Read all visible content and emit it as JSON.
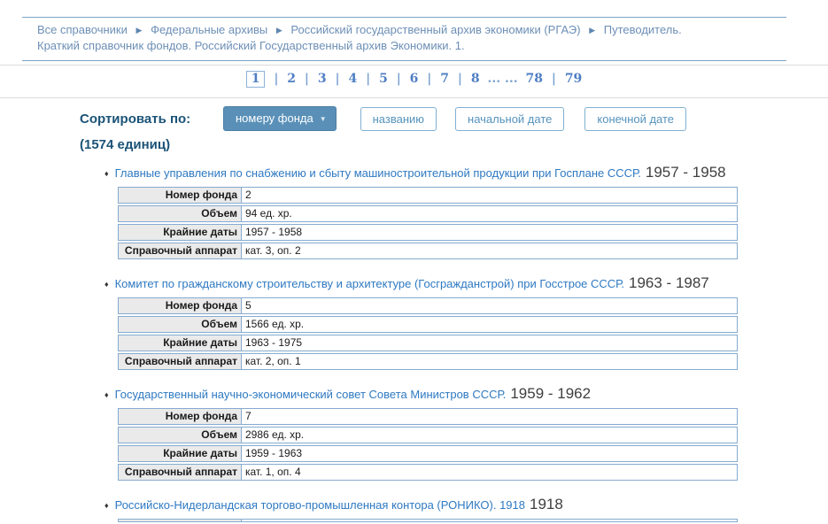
{
  "breadcrumb": {
    "separator": "▶",
    "items": [
      "Все справочники",
      "Федеральные архивы",
      "Российский государственный архив экономики (РГАЭ)",
      "Путеводитель. Краткий справочник фондов. Российский Государственный архив Экономики. 1."
    ]
  },
  "pagination": {
    "current": "1",
    "separator": "|",
    "ellipsis": "... ...",
    "pages": [
      "2",
      "3",
      "4",
      "5",
      "6",
      "7",
      "8"
    ],
    "last_pages": [
      "78",
      "79"
    ]
  },
  "sort": {
    "label": "Сортировать по:",
    "count": "(1574 единиц)",
    "buttons": [
      {
        "label": "номеру фонда",
        "caret": "▼"
      },
      {
        "label": "названию"
      },
      {
        "label": "начальной дате"
      },
      {
        "label": "конечной дате"
      }
    ]
  },
  "field_labels": {
    "number": "Номер фонда",
    "volume": "Объем",
    "dates": "Крайние даты",
    "reference": "Справочный аппарат"
  },
  "icons": {
    "bullet": "♦"
  },
  "entries": [
    {
      "title": "Главные управления по снабжению и сбыту машиностроительной продукции при Госплане СССР.",
      "date": "1957 - 1958",
      "number": "2",
      "volume": "94 ед. хр.",
      "dates": "1957 - 1958",
      "reference": "кат. 3, оп. 2"
    },
    {
      "title": "Комитет по гражданскому строительству и архитектуре (Госгражданстрой) при Госстрое СССР.",
      "date": "1963 - 1987",
      "number": "5",
      "volume": "1566 ед. хр.",
      "dates": "1963 - 1975",
      "reference": "кат. 2, оп. 1"
    },
    {
      "title": "Государственный научно-экономический совет Совета Министров СССР.",
      "date": "1959 - 1962",
      "number": "7",
      "volume": "2986 ед. хр.",
      "dates": "1959 - 1963",
      "reference": "кат. 1, оп. 4"
    },
    {
      "title": "Российско-Нидерландская торгово-промышленная контора (РОНИКО). 1918",
      "date": "1918"
    }
  ],
  "colors": {
    "accent_blue": "#5a90b8",
    "link_blue": "#2e79c2",
    "breadcrumb_blue": "#6d8fb6",
    "rule_blue": "#7ba3c8",
    "table_border": "#86abd0",
    "heading_dark_blue": "#1b5377"
  }
}
